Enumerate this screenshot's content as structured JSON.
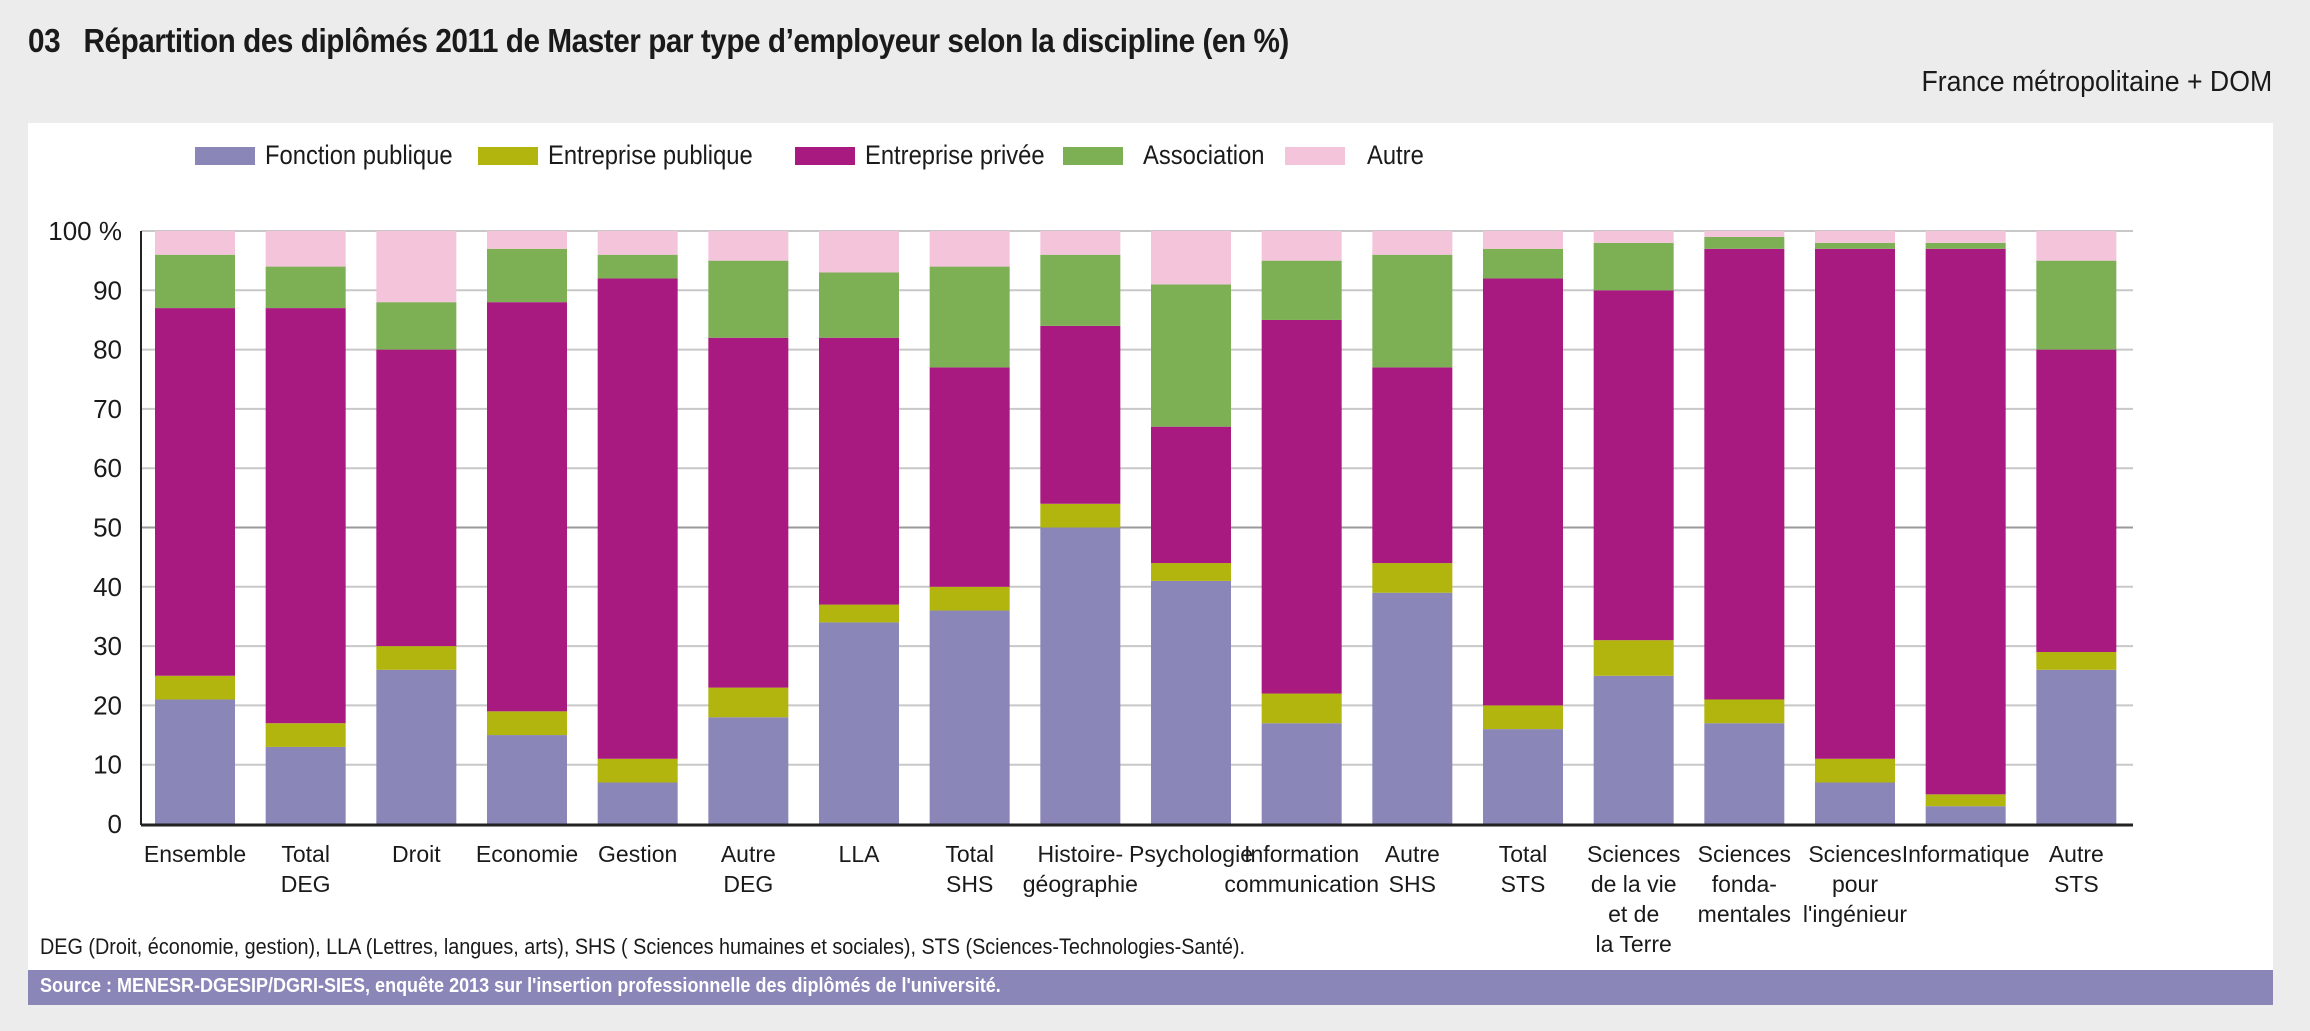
{
  "header": {
    "number": "03",
    "title": "Répartition des diplômés 2011 de Master par type d’employeur selon la discipline (en %)",
    "scope": "France métropolitaine + DOM"
  },
  "note": "DEG (Droit, économie, gestion), LLA (Lettres, langues, arts), SHS ( Sciences humaines et sociales), STS (Sciences-Technologies-Santé).",
  "source": "Source : MENESR-DGESIP/DGRI-SIES, enquête 2013 sur l'insertion professionnelle des diplômés de l'université.",
  "chart_data": {
    "type": "bar",
    "stacked": true,
    "title": "Répartition des diplômés 2011 de Master par type d’employeur selon la discipline (en %)",
    "xlabel": "",
    "ylabel": "",
    "ylim": [
      0,
      100
    ],
    "yticks": [
      0,
      10,
      20,
      30,
      40,
      50,
      60,
      70,
      80,
      90,
      100
    ],
    "ytick_labels": [
      "0",
      "10",
      "20",
      "30",
      "40",
      "50",
      "60",
      "70",
      "80",
      "90",
      "100 %"
    ],
    "grid": true,
    "legend_position": "top-left",
    "categories": [
      [
        "Ensemble"
      ],
      [
        "Total",
        "DEG"
      ],
      [
        "Droit"
      ],
      [
        "Economie"
      ],
      [
        "Gestion"
      ],
      [
        "Autre",
        "DEG"
      ],
      [
        "LLA"
      ],
      [
        "Total",
        "SHS"
      ],
      [
        "Histoire-",
        "géographie"
      ],
      [
        "Psychologie"
      ],
      [
        "Information",
        "communication"
      ],
      [
        "Autre",
        "SHS"
      ],
      [
        "Total",
        "STS"
      ],
      [
        "Sciences",
        "de la vie",
        "et de",
        "la Terre"
      ],
      [
        "Sciences",
        "fonda-",
        "mentales"
      ],
      [
        "Sciences",
        "pour",
        "l'ingénieur"
      ],
      [
        "Informatique"
      ],
      [
        "Autre",
        "STS"
      ]
    ],
    "series": [
      {
        "name": "Fonction publique",
        "color": "#8a86b8",
        "values": [
          21,
          13,
          26,
          15,
          7,
          18,
          34,
          36,
          50,
          41,
          17,
          39,
          16,
          25,
          17,
          7,
          3,
          26
        ]
      },
      {
        "name": "Entreprise publique",
        "color": "#b1b50e",
        "values": [
          4,
          4,
          4,
          4,
          4,
          5,
          3,
          4,
          4,
          3,
          5,
          5,
          4,
          6,
          4,
          4,
          2,
          3
        ]
      },
      {
        "name": "Entreprise privée",
        "color": "#a91a80",
        "values": [
          62,
          70,
          50,
          69,
          81,
          59,
          45,
          37,
          30,
          23,
          63,
          33,
          72,
          59,
          76,
          86,
          92,
          51
        ]
      },
      {
        "name": "Association",
        "color": "#7daf55",
        "values": [
          9,
          7,
          8,
          9,
          4,
          13,
          11,
          17,
          12,
          24,
          10,
          19,
          5,
          8,
          2,
          1,
          1,
          15
        ]
      },
      {
        "name": "Autre",
        "color": "#f4c4da",
        "values": [
          4,
          6,
          12,
          3,
          4,
          5,
          7,
          6,
          4,
          9,
          5,
          4,
          3,
          2,
          1,
          2,
          2,
          5
        ]
      }
    ]
  }
}
